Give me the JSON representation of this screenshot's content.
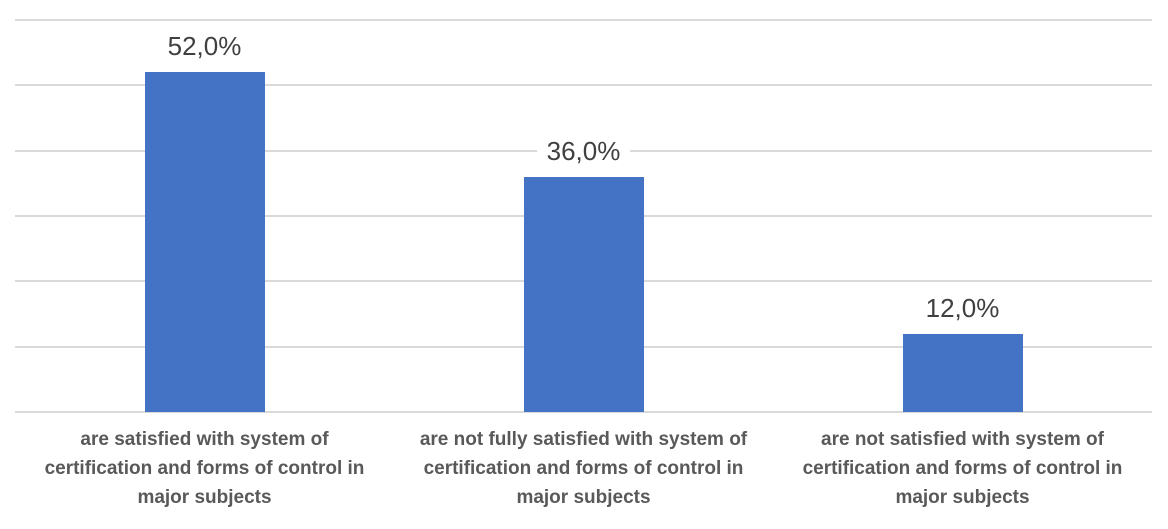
{
  "chart_data": {
    "type": "bar",
    "title": "",
    "xlabel": "",
    "ylabel": "",
    "categories": [
      "are satisfied with system of certification and forms of control in major subjects",
      "are not fully satisfied with system of certification and forms of control in major subjects",
      "are not satisfied with system of certification and forms of control in major subjects"
    ],
    "category_lines": [
      [
        "are satisfied with system of",
        "certification and forms of control in",
        "major subjects"
      ],
      [
        "are not fully satisfied with system of",
        "certification and forms of control in",
        "major subjects"
      ],
      [
        "are not satisfied with system of",
        "certification and forms of control in",
        "major subjects"
      ]
    ],
    "values": [
      52.0,
      36.0,
      12.0
    ],
    "value_labels": [
      "52,0%",
      "36,0%",
      "12,0%"
    ],
    "ylim": [
      0,
      60
    ],
    "gridline_step": 10,
    "grid": true,
    "legend": "none",
    "colors": {
      "bar_fill": "#4472C4",
      "gridline": "#D9D9D9",
      "value_label_text": "#404040",
      "category_label_text": "#595959",
      "background": "#FFFFFF"
    }
  }
}
